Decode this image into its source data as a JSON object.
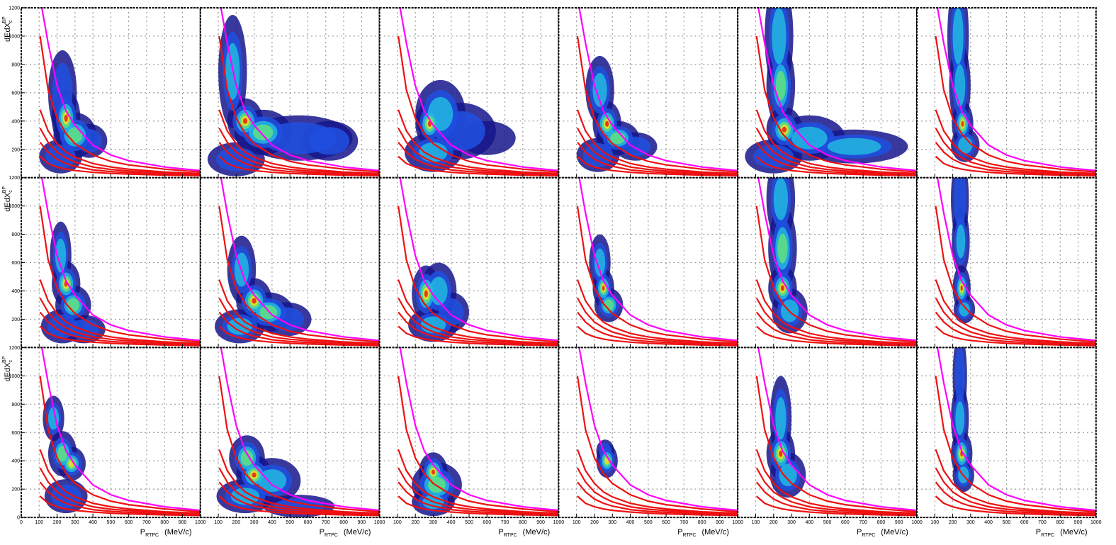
{
  "chart_data": {
    "type": "heatmap-grid",
    "rows": 3,
    "columns": 6,
    "xlim": [
      0,
      1000
    ],
    "ylim": [
      0,
      1200
    ],
    "xticks": [
      0,
      100,
      200,
      300,
      400,
      500,
      600,
      700,
      800,
      900,
      1000
    ],
    "yticks": [
      0,
      200,
      400,
      600,
      800,
      1000,
      1200
    ],
    "grid": true,
    "xlabel": {
      "main": "P",
      "sub": "RTPC",
      "unit": "(MeV/c)"
    },
    "ylabel": {
      "main": "dEdX",
      "sub": "c",
      "sup": "BP"
    },
    "curves": [
      {
        "color": "#ff00ff",
        "x": [
          115,
          150,
          200,
          250,
          300,
          400,
          500,
          600,
          800,
          1000
        ],
        "y": [
          1200,
          950,
          650,
          470,
          370,
          230,
          160,
          120,
          75,
          50
        ]
      },
      {
        "color": "#ee1111",
        "x": [
          105,
          150,
          200,
          250,
          300,
          400,
          500,
          600,
          800,
          1000
        ],
        "y": [
          1000,
          620,
          420,
          310,
          240,
          160,
          115,
          90,
          60,
          40
        ]
      },
      {
        "color": "#ee1111",
        "x": [
          105,
          150,
          200,
          250,
          300,
          400,
          500,
          600,
          800,
          1000
        ],
        "y": [
          480,
          330,
          240,
          180,
          145,
          100,
          75,
          60,
          40,
          30
        ]
      },
      {
        "color": "#ee1111",
        "x": [
          105,
          150,
          200,
          250,
          300,
          400,
          500,
          600,
          800,
          1000
        ],
        "y": [
          350,
          250,
          180,
          140,
          110,
          75,
          58,
          48,
          35,
          25
        ]
      },
      {
        "color": "#ee1111",
        "x": [
          105,
          150,
          200,
          250,
          300,
          400,
          500,
          600,
          800,
          1000
        ],
        "y": [
          250,
          180,
          130,
          100,
          80,
          55,
          43,
          36,
          26,
          20
        ]
      },
      {
        "color": "#ee1111",
        "x": [
          105,
          150,
          200,
          250,
          300,
          400,
          500,
          600,
          800,
          1000
        ],
        "y": [
          150,
          100,
          75,
          60,
          50,
          38,
          30,
          25,
          18,
          14
        ]
      }
    ],
    "panels": [
      {
        "clusters": [
          [
            230,
            600,
            40,
            150,
            0.4
          ],
          [
            250,
            420,
            40,
            100,
            1
          ],
          [
            300,
            300,
            60,
            80,
            0.6
          ],
          [
            380,
            260,
            50,
            60,
            0.3
          ],
          [
            220,
            150,
            60,
            60,
            0.3
          ]
        ]
      },
      {
        "clusters": [
          [
            180,
            750,
            40,
            200,
            0.5
          ],
          [
            250,
            400,
            50,
            80,
            1
          ],
          [
            350,
            320,
            80,
            80,
            0.6
          ],
          [
            550,
            280,
            150,
            80,
            0.4
          ],
          [
            720,
            260,
            80,
            70,
            0.35
          ],
          [
            200,
            130,
            80,
            60,
            0.4
          ]
        ]
      },
      {
        "clusters": [
          [
            280,
            380,
            40,
            80,
            1
          ],
          [
            340,
            450,
            70,
            120,
            0.5
          ],
          [
            450,
            330,
            100,
            100,
            0.35
          ],
          [
            300,
            180,
            80,
            70,
            0.5
          ],
          [
            600,
            280,
            80,
            60,
            0.25
          ]
        ]
      },
      {
        "clusters": [
          [
            230,
            620,
            40,
            120,
            0.5
          ],
          [
            270,
            380,
            40,
            80,
            1
          ],
          [
            330,
            280,
            60,
            60,
            0.6
          ],
          [
            430,
            220,
            60,
            50,
            0.3
          ],
          [
            220,
            160,
            60,
            60,
            0.3
          ]
        ]
      },
      {
        "clusters": [
          [
            230,
            1000,
            40,
            200,
            0.5
          ],
          [
            240,
            650,
            40,
            150,
            0.6
          ],
          [
            260,
            340,
            50,
            80,
            1
          ],
          [
            400,
            280,
            100,
            80,
            0.5
          ],
          [
            650,
            220,
            150,
            60,
            0.45
          ],
          [
            200,
            150,
            80,
            60,
            0.4
          ]
        ]
      },
      {
        "clusters": [
          [
            230,
            1000,
            30,
            200,
            0.45
          ],
          [
            240,
            650,
            30,
            150,
            0.55
          ],
          [
            255,
            380,
            30,
            80,
            1
          ],
          [
            270,
            230,
            40,
            60,
            0.5
          ]
        ]
      },
      {
        "clusters": [
          [
            220,
            650,
            30,
            120,
            0.5
          ],
          [
            250,
            450,
            40,
            80,
            1
          ],
          [
            290,
            300,
            50,
            70,
            0.6
          ],
          [
            230,
            150,
            60,
            60,
            0.4
          ],
          [
            350,
            130,
            60,
            50,
            0.35
          ]
        ]
      },
      {
        "clusters": [
          [
            230,
            550,
            40,
            120,
            0.5
          ],
          [
            300,
            330,
            50,
            80,
            1
          ],
          [
            380,
            250,
            70,
            70,
            0.6
          ],
          [
            480,
            200,
            70,
            60,
            0.35
          ],
          [
            220,
            150,
            70,
            60,
            0.45
          ]
        ]
      },
      {
        "clusters": [
          [
            260,
            380,
            40,
            100,
            1
          ],
          [
            330,
            400,
            50,
            100,
            0.5
          ],
          [
            300,
            160,
            70,
            60,
            0.5
          ],
          [
            400,
            250,
            50,
            70,
            0.3
          ]
        ]
      },
      {
        "clusters": [
          [
            230,
            600,
            30,
            100,
            0.5
          ],
          [
            250,
            420,
            30,
            70,
            1
          ],
          [
            280,
            300,
            40,
            60,
            0.6
          ]
        ]
      },
      {
        "clusters": [
          [
            240,
            1050,
            40,
            150,
            0.5
          ],
          [
            250,
            700,
            40,
            150,
            0.6
          ],
          [
            250,
            420,
            40,
            80,
            1
          ],
          [
            290,
            260,
            50,
            80,
            0.55
          ]
        ]
      },
      {
        "clusters": [
          [
            240,
            1050,
            25,
            150,
            0.4
          ],
          [
            245,
            750,
            25,
            120,
            0.5
          ],
          [
            250,
            420,
            25,
            80,
            1
          ],
          [
            265,
            270,
            30,
            50,
            0.5
          ]
        ]
      },
      {
        "clusters": [
          [
            180,
            700,
            30,
            80,
            0.5
          ],
          [
            230,
            450,
            40,
            80,
            0.6
          ],
          [
            280,
            380,
            40,
            60,
            0.8
          ],
          [
            250,
            150,
            60,
            60,
            0.35
          ]
        ]
      },
      {
        "clusters": [
          [
            300,
            300,
            50,
            70,
            1
          ],
          [
            260,
            420,
            50,
            80,
            0.6
          ],
          [
            400,
            260,
            80,
            80,
            0.5
          ],
          [
            250,
            150,
            80,
            60,
            0.5
          ],
          [
            550,
            80,
            100,
            40,
            0.3
          ]
        ]
      },
      {
        "clusters": [
          [
            300,
            320,
            40,
            70,
            1
          ],
          [
            320,
            230,
            70,
            80,
            0.6
          ],
          [
            300,
            110,
            60,
            50,
            0.5
          ]
        ]
      },
      {
        "clusters": [
          [
            270,
            400,
            30,
            60,
            0.8
          ],
          [
            260,
            470,
            25,
            40,
            0.4
          ]
        ]
      },
      {
        "clusters": [
          [
            240,
            700,
            30,
            150,
            0.55
          ],
          [
            240,
            450,
            40,
            90,
            1
          ],
          [
            280,
            300,
            50,
            80,
            0.5
          ]
        ]
      },
      {
        "clusters": [
          [
            240,
            1000,
            20,
            150,
            0.4
          ],
          [
            240,
            700,
            25,
            120,
            0.5
          ],
          [
            250,
            450,
            30,
            80,
            1
          ],
          [
            260,
            300,
            30,
            60,
            0.5
          ]
        ]
      }
    ]
  }
}
